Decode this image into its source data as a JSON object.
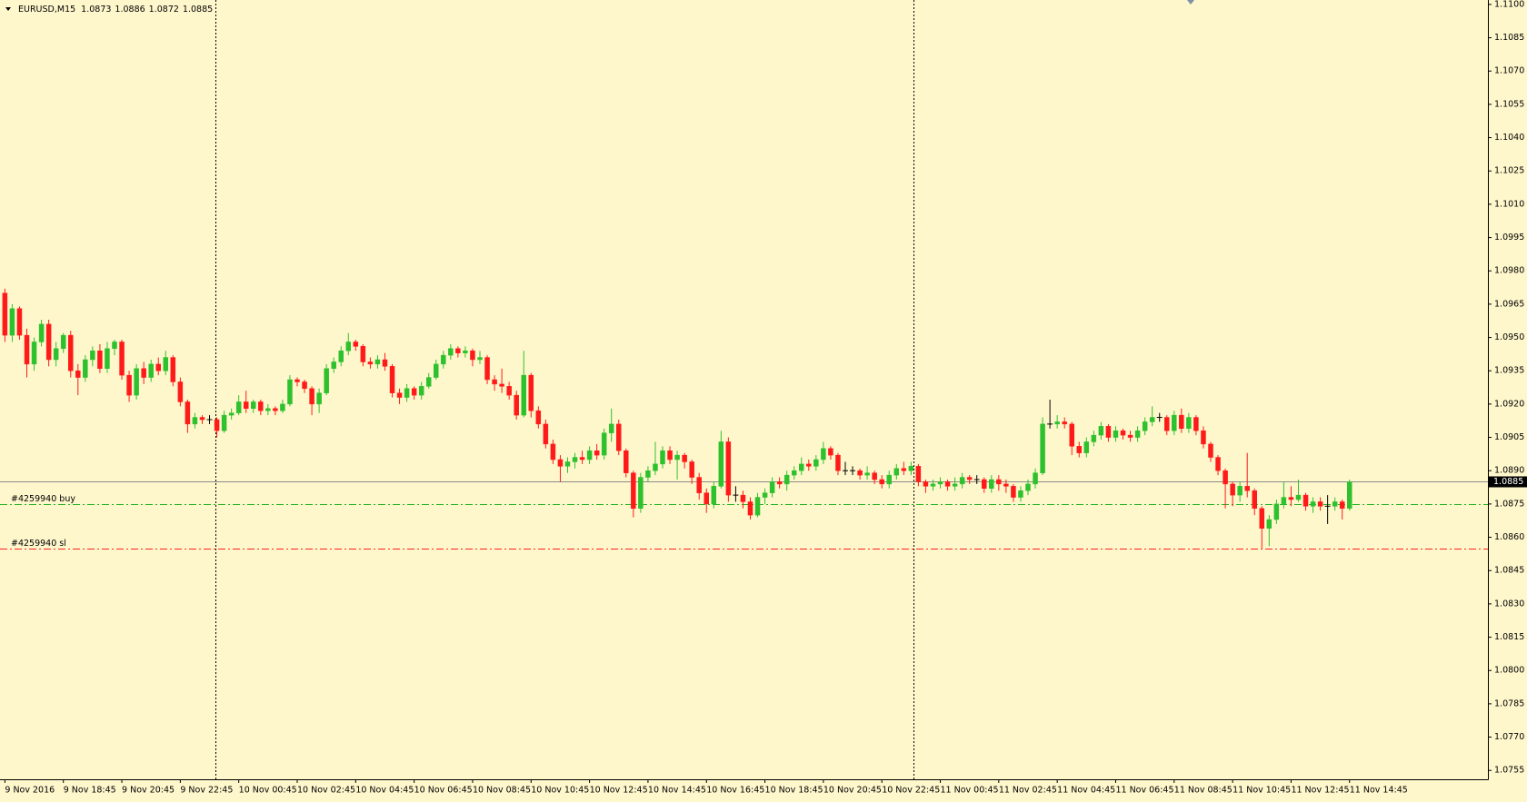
{
  "chart_data": {
    "type": "candlestick",
    "title": "EURUSD,M15",
    "categories": [
      "9 Nov 2016",
      null,
      null,
      null,
      null,
      null,
      null,
      null,
      "9 Nov 18:45",
      null,
      null,
      null,
      null,
      null,
      null,
      null,
      "9 Nov 20:45",
      null,
      null,
      null,
      null,
      null,
      null,
      null,
      "9 Nov 22:45",
      null,
      null,
      null,
      null,
      null,
      null,
      null,
      "10 Nov 00:45",
      null,
      null,
      null,
      null,
      null,
      null,
      null,
      "10 Nov 02:45",
      null,
      null,
      null,
      null,
      null,
      null,
      null,
      "10 Nov 04:45",
      null,
      null,
      null,
      null,
      null,
      null,
      null,
      "10 Nov 06:45",
      null,
      null,
      null,
      null,
      null,
      null,
      null,
      "10 Nov 08:45",
      null,
      null,
      null,
      null,
      null,
      null,
      null,
      "10 Nov 10:45",
      null,
      null,
      null,
      null,
      null,
      null,
      null,
      "10 Nov 12:45",
      null,
      null,
      null,
      null,
      null,
      null,
      null,
      "10 Nov 14:45",
      null,
      null,
      null,
      null,
      null,
      null,
      null,
      "10 Nov 16:45",
      null,
      null,
      null,
      null,
      null,
      null,
      null,
      "10 Nov 18:45",
      null,
      null,
      null,
      null,
      null,
      null,
      null,
      "10 Nov 20:45",
      null,
      null,
      null,
      null,
      null,
      null,
      null,
      "10 Nov 22:45",
      null,
      null,
      null,
      null,
      null,
      null,
      null,
      "11 Nov 00:45",
      null,
      null,
      null,
      null,
      null,
      null,
      null,
      "11 Nov 02:45",
      null,
      null,
      null,
      null,
      null,
      null,
      null,
      "11 Nov 04:45",
      null,
      null,
      null,
      null,
      null,
      null,
      null,
      "11 Nov 06:45",
      null,
      null,
      null,
      null,
      null,
      null,
      null,
      "11 Nov 08:45",
      null,
      null,
      null,
      null,
      null,
      null,
      null,
      "11 Nov 10:45",
      null,
      null,
      null,
      null,
      null,
      null,
      null,
      "11 Nov 12:45",
      null,
      null,
      null,
      null,
      null,
      null,
      null,
      "11 Nov 14:45"
    ],
    "open": [
      1.097,
      1.0951,
      1.0963,
      1.0951,
      1.0938,
      1.0948,
      1.0956,
      1.094,
      1.0945,
      1.0951,
      1.0935,
      1.0932,
      1.094,
      1.0944,
      1.0936,
      1.0945,
      1.0948,
      1.0933,
      1.0924,
      1.0936,
      1.0932,
      1.0938,
      1.0935,
      1.0941,
      1.093,
      1.0921,
      1.0911,
      1.0914,
      1.0913,
      1.0913,
      1.0908,
      1.0915,
      1.0916,
      1.0921,
      1.0918,
      1.0921,
      1.0917,
      1.0918,
      1.0917,
      1.092,
      1.0931,
      1.093,
      1.0927,
      1.092,
      1.0925,
      1.0936,
      1.0939,
      1.0944,
      1.0948,
      1.0946,
      1.0939,
      1.0938,
      1.094,
      1.0937,
      1.0925,
      1.0923,
      1.0927,
      1.0924,
      1.0928,
      1.0932,
      1.0938,
      1.0942,
      1.0945,
      1.0943,
      1.0944,
      1.094,
      1.0941,
      1.0931,
      1.0929,
      1.0928,
      1.0924,
      1.0915,
      1.0933,
      1.0917,
      1.0911,
      1.0902,
      1.0895,
      1.0892,
      1.0894,
      1.0896,
      1.0895,
      1.0899,
      1.0897,
      1.0907,
      1.0911,
      1.0899,
      1.0889,
      1.0873,
      1.0887,
      1.089,
      1.0893,
      1.0899,
      1.0895,
      1.0897,
      1.0894,
      1.0887,
      1.088,
      1.0875,
      1.0883,
      1.0903,
      1.0879,
      1.0879,
      1.0876,
      1.087,
      1.0878,
      1.088,
      1.0885,
      1.0884,
      1.0888,
      1.089,
      1.0893,
      1.0892,
      1.0895,
      1.09,
      1.0897,
      1.089,
      1.089,
      1.089,
      1.0888,
      1.0889,
      1.0886,
      1.0884,
      1.0888,
      1.0891,
      1.089,
      1.0892,
      1.0885,
      1.0883,
      1.0884,
      1.0885,
      1.0883,
      1.0884,
      1.0887,
      1.0886,
      1.0886,
      1.0882,
      1.0886,
      1.0884,
      1.0883,
      1.0878,
      1.0881,
      1.0884,
      1.0889,
      1.0911,
      1.0911,
      1.0912,
      1.0911,
      1.0901,
      1.0898,
      1.0903,
      1.0906,
      1.091,
      1.0905,
      1.0908,
      1.0906,
      1.0905,
      1.0908,
      1.0912,
      1.0914,
      1.0914,
      1.0908,
      1.0915,
      1.0909,
      1.0914,
      1.0908,
      1.0902,
      1.0896,
      1.089,
      1.0884,
      1.0879,
      1.0883,
      1.0881,
      1.0873,
      1.0864,
      1.0868,
      1.0875,
      1.0878,
      1.0877,
      1.0879,
      1.0874,
      1.0876,
      1.0874,
      1.0874,
      1.0876,
      1.0873
    ],
    "high": [
      1.0972,
      1.0965,
      1.0964,
      1.0954,
      1.095,
      1.0958,
      1.0958,
      1.0948,
      1.0952,
      1.0953,
      1.0938,
      1.0942,
      1.0946,
      1.0947,
      1.0948,
      1.0949,
      1.0949,
      1.0935,
      1.0938,
      1.0939,
      1.094,
      1.0941,
      1.0944,
      1.0942,
      1.0932,
      1.0922,
      1.0916,
      1.0915,
      1.0915,
      1.0914,
      1.0917,
      1.0918,
      1.0924,
      1.0926,
      1.0922,
      1.0922,
      1.092,
      1.0919,
      1.0922,
      1.0933,
      1.0932,
      1.0931,
      1.0928,
      1.0927,
      1.0938,
      1.0941,
      1.0946,
      1.0952,
      1.0949,
      1.0947,
      1.0941,
      1.0942,
      1.0943,
      1.0938,
      1.0927,
      1.0929,
      1.0928,
      1.093,
      1.0934,
      1.094,
      1.0944,
      1.0947,
      1.0946,
      1.0946,
      1.0945,
      1.0944,
      1.0942,
      1.0933,
      1.0936,
      1.093,
      1.0926,
      1.0944,
      1.0934,
      1.0919,
      1.0913,
      1.0904,
      1.0897,
      1.0896,
      1.0898,
      1.0899,
      1.0901,
      1.0902,
      1.0909,
      1.0918,
      1.0913,
      1.09,
      1.089,
      1.0889,
      1.0892,
      1.0903,
      1.0901,
      1.0901,
      1.0899,
      1.0898,
      1.0895,
      1.0889,
      1.0882,
      1.0885,
      1.0908,
      1.0905,
      1.0883,
      1.0881,
      1.0878,
      1.088,
      1.0882,
      1.0887,
      1.0887,
      1.089,
      1.0892,
      1.0896,
      1.0895,
      1.0897,
      1.0903,
      1.0901,
      1.0898,
      1.0894,
      1.0892,
      1.0891,
      1.0892,
      1.089,
      1.0888,
      1.089,
      1.0893,
      1.0894,
      1.0894,
      1.0893,
      1.0886,
      1.0886,
      1.0887,
      1.0886,
      1.0887,
      1.0889,
      1.0888,
      1.0888,
      1.0887,
      1.0888,
      1.0888,
      1.0886,
      1.0884,
      1.0883,
      1.0886,
      1.0891,
      1.0914,
      1.0922,
      1.0915,
      1.0914,
      1.0912,
      1.0903,
      1.0905,
      1.0908,
      1.0912,
      1.0911,
      1.091,
      1.0909,
      1.0908,
      1.091,
      1.0914,
      1.0919,
      1.0916,
      1.0915,
      1.0917,
      1.0918,
      1.0916,
      1.0915,
      1.091,
      1.0903,
      1.0897,
      1.0891,
      1.0885,
      1.0885,
      1.0898,
      1.0882,
      1.0874,
      1.087,
      1.0877,
      1.0885,
      1.0883,
      1.0886,
      1.088,
      1.0878,
      1.0878,
      1.0879,
      1.0878,
      1.0877,
      1.0886
    ],
    "low": [
      1.0948,
      1.0948,
      1.0949,
      1.0932,
      1.0935,
      1.0946,
      1.0937,
      1.0937,
      1.0943,
      1.0932,
      1.0924,
      1.093,
      1.0937,
      1.0934,
      1.0934,
      1.0942,
      1.0931,
      1.0921,
      1.0922,
      1.0929,
      1.093,
      1.0933,
      1.0933,
      1.0928,
      1.0919,
      1.0907,
      1.0909,
      1.0911,
      1.0911,
      1.0905,
      1.0907,
      1.0913,
      1.0915,
      1.0916,
      1.0916,
      1.0915,
      1.0915,
      1.0915,
      1.0916,
      1.0919,
      1.0928,
      1.0925,
      1.0915,
      1.0916,
      1.0924,
      1.0934,
      1.0937,
      1.0942,
      1.0944,
      1.0937,
      1.0936,
      1.0936,
      1.0935,
      1.0923,
      1.092,
      1.0921,
      1.0922,
      1.0922,
      1.0927,
      1.0931,
      1.0936,
      1.094,
      1.0941,
      1.0941,
      1.0937,
      1.0938,
      1.0929,
      1.0926,
      1.0925,
      1.0922,
      1.0913,
      1.0914,
      1.0914,
      1.0909,
      1.09,
      1.0893,
      1.0885,
      1.0889,
      1.0891,
      1.0893,
      1.0893,
      1.0895,
      1.0895,
      1.0903,
      1.0897,
      1.0887,
      1.0869,
      1.0871,
      1.0885,
      1.0888,
      1.0891,
      1.0893,
      1.0886,
      1.0891,
      1.0884,
      1.0877,
      1.0871,
      1.0873,
      1.0882,
      1.0876,
      1.0876,
      1.0873,
      1.0868,
      1.0869,
      1.0875,
      1.0878,
      1.0882,
      1.0881,
      1.0886,
      1.0888,
      1.089,
      1.089,
      1.0893,
      1.0895,
      1.0888,
      1.0888,
      1.0888,
      1.0886,
      1.0886,
      1.0884,
      1.0882,
      1.0882,
      1.0886,
      1.0888,
      1.0888,
      1.0883,
      1.088,
      1.0881,
      1.0882,
      1.0881,
      1.0881,
      1.0882,
      1.0884,
      1.0884,
      1.088,
      1.088,
      1.0881,
      1.088,
      1.0876,
      1.0876,
      1.0879,
      1.0882,
      1.0888,
      1.0909,
      1.0909,
      1.0909,
      1.0897,
      1.0896,
      1.0896,
      1.0901,
      1.0904,
      1.0903,
      1.0903,
      1.0904,
      1.0903,
      1.0903,
      1.0906,
      1.091,
      1.0912,
      1.0906,
      1.0906,
      1.0907,
      1.0907,
      1.0906,
      1.09,
      1.0894,
      1.0888,
      1.0873,
      1.0874,
      1.0876,
      1.0878,
      1.087,
      1.0855,
      1.0856,
      1.0866,
      1.0873,
      1.0874,
      1.0876,
      1.0872,
      1.0871,
      1.0872,
      1.0866,
      1.0872,
      1.0868,
      1.0872
    ],
    "close": [
      1.0951,
      1.0963,
      1.0951,
      1.0938,
      1.0948,
      1.0956,
      1.094,
      1.0945,
      1.0951,
      1.0935,
      1.0932,
      1.094,
      1.0944,
      1.0936,
      1.0945,
      1.0948,
      1.0933,
      1.0924,
      1.0936,
      1.0932,
      1.0938,
      1.0935,
      1.0941,
      1.093,
      1.0921,
      1.0911,
      1.0914,
      1.0913,
      1.0913,
      1.0908,
      1.0915,
      1.0916,
      1.0921,
      1.0918,
      1.0921,
      1.0917,
      1.0918,
      1.0917,
      1.092,
      1.0931,
      1.093,
      1.0927,
      1.092,
      1.0925,
      1.0936,
      1.0939,
      1.0944,
      1.0948,
      1.0946,
      1.0939,
      1.0938,
      1.094,
      1.0937,
      1.0925,
      1.0923,
      1.0927,
      1.0924,
      1.0928,
      1.0932,
      1.0938,
      1.0942,
      1.0945,
      1.0943,
      1.0944,
      1.094,
      1.0941,
      1.0931,
      1.0929,
      1.0928,
      1.0924,
      1.0915,
      1.0933,
      1.0917,
      1.0911,
      1.0902,
      1.0895,
      1.0892,
      1.0894,
      1.0896,
      1.0895,
      1.0899,
      1.0897,
      1.0907,
      1.0911,
      1.0899,
      1.0889,
      1.0873,
      1.0887,
      1.089,
      1.0893,
      1.0899,
      1.0895,
      1.0897,
      1.0894,
      1.0887,
      1.088,
      1.0875,
      1.0883,
      1.0903,
      1.0879,
      1.0879,
      1.0876,
      1.087,
      1.0878,
      1.088,
      1.0885,
      1.0884,
      1.0888,
      1.089,
      1.0893,
      1.0892,
      1.0895,
      1.09,
      1.0897,
      1.089,
      1.089,
      1.089,
      1.0888,
      1.0889,
      1.0886,
      1.0884,
      1.0888,
      1.0891,
      1.089,
      1.0892,
      1.0885,
      1.0883,
      1.0884,
      1.0885,
      1.0883,
      1.0884,
      1.0887,
      1.0886,
      1.0886,
      1.0882,
      1.0886,
      1.0884,
      1.0883,
      1.0878,
      1.0881,
      1.0884,
      1.0889,
      1.0911,
      1.0911,
      1.0912,
      1.0911,
      1.0901,
      1.0898,
      1.0903,
      1.0906,
      1.091,
      1.0905,
      1.0908,
      1.0906,
      1.0905,
      1.0908,
      1.0912,
      1.0914,
      1.0914,
      1.0908,
      1.0915,
      1.0909,
      1.0914,
      1.0908,
      1.0902,
      1.0896,
      1.089,
      1.0884,
      1.0879,
      1.0883,
      1.0881,
      1.0873,
      1.0864,
      1.0868,
      1.0875,
      1.0878,
      1.0877,
      1.0879,
      1.0874,
      1.0876,
      1.0874,
      1.0874,
      1.0876,
      1.0873,
      1.0885
    ],
    "up_color": "#2ec12e",
    "down_color": "#ff1a1a",
    "doji_color": "#000000",
    "ylim": [
      1.0751,
      1.1102
    ],
    "yticks": [
      {
        "value": 1.11,
        "label": "1.1100"
      },
      1.1085,
      {
        "value": 1.107,
        "label": "1.1070"
      },
      1.1055,
      {
        "value": 1.104,
        "label": "1.1040"
      },
      1.1025,
      {
        "value": 1.101,
        "label": "1.1010"
      },
      1.0995,
      {
        "value": 1.098,
        "label": "1.0980"
      },
      1.0965,
      {
        "value": 1.095,
        "label": "1.0950"
      },
      1.0935,
      {
        "value": 1.092,
        "label": "1.0920"
      },
      1.0905,
      {
        "value": 1.089,
        "label": "1.0890"
      },
      1.0875,
      {
        "value": 1.086,
        "label": "1.0860"
      },
      1.0845,
      {
        "value": 1.083,
        "label": "1.0830"
      },
      1.0815,
      {
        "value": 1.08,
        "label": "1.0800"
      },
      1.0785,
      {
        "value": 1.077,
        "label": "1.0770"
      },
      1.0755
    ],
    "grid": false,
    "order_lines": [
      {
        "label": "#4259940 buy",
        "value": 1.0875,
        "color": "#22b422"
      },
      {
        "label": "#4259940 sl",
        "value": 1.0855,
        "color": "#ff2020"
      }
    ]
  }
}
